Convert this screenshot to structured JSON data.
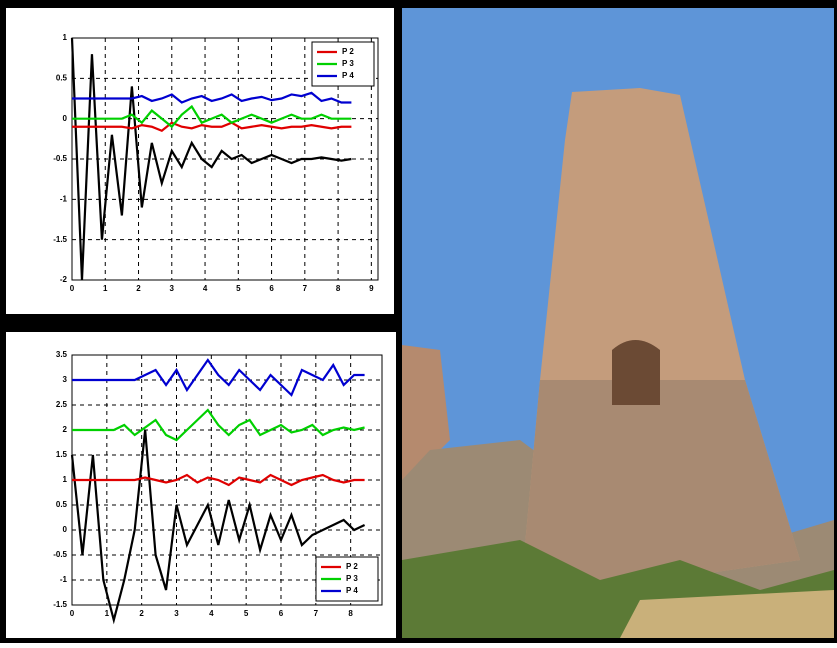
{
  "chart_data": [
    {
      "type": "line",
      "x": [
        0,
        0.3,
        0.6,
        0.9,
        1.2,
        1.5,
        1.8,
        2.1,
        2.4,
        2.7,
        3,
        3.3,
        3.6,
        3.9,
        4.2,
        4.5,
        4.8,
        5.1,
        5.4,
        5.7,
        6,
        6.3,
        6.6,
        6.9,
        7.2,
        7.5,
        7.8,
        8.1,
        8.4
      ],
      "series": [
        {
          "color": "#000000",
          "values": [
            1,
            -2,
            0.8,
            -1.5,
            -0.2,
            -1.2,
            0.4,
            -1.1,
            -0.3,
            -0.8,
            -0.4,
            -0.6,
            -0.3,
            -0.5,
            -0.6,
            -0.4,
            -0.5,
            -0.45,
            -0.55,
            -0.5,
            -0.45,
            -0.5,
            -0.55,
            -0.5,
            -0.5,
            -0.48,
            -0.5,
            -0.52,
            -0.5
          ]
        },
        {
          "name": "P 2",
          "color": "#e00000",
          "values": [
            -0.1,
            -0.1,
            -0.1,
            -0.1,
            -0.1,
            -0.1,
            -0.12,
            -0.08,
            -0.1,
            -0.15,
            -0.05,
            -0.1,
            -0.12,
            -0.08,
            -0.1,
            -0.1,
            -0.05,
            -0.12,
            -0.1,
            -0.08,
            -0.1,
            -0.12,
            -0.1,
            -0.1,
            -0.08,
            -0.1,
            -0.12,
            -0.1,
            -0.1
          ]
        },
        {
          "name": "P 3",
          "color": "#00d000",
          "values": [
            0,
            0,
            0,
            0,
            0,
            0,
            0.05,
            -0.05,
            0.1,
            0,
            -0.1,
            0.05,
            0.15,
            -0.05,
            0,
            0.05,
            -0.05,
            0,
            0.05,
            0,
            -0.05,
            0,
            0.05,
            0,
            0,
            0.05,
            0,
            0,
            0
          ]
        },
        {
          "name": "P 4",
          "color": "#0000d0",
          "values": [
            0.25,
            0.25,
            0.25,
            0.25,
            0.25,
            0.25,
            0.25,
            0.28,
            0.22,
            0.25,
            0.3,
            0.2,
            0.25,
            0.28,
            0.22,
            0.25,
            0.3,
            0.22,
            0.25,
            0.27,
            0.23,
            0.25,
            0.3,
            0.28,
            0.32,
            0.22,
            0.25,
            0.2,
            0.2
          ]
        }
      ],
      "xlim": [
        0,
        9.2
      ],
      "xticks": [
        0,
        1,
        2,
        3,
        4,
        5,
        6,
        7,
        8,
        9
      ],
      "ylim": [
        -2,
        1
      ],
      "yticks": [
        -2,
        -1.5,
        -1,
        -0.5,
        0,
        0.5,
        1
      ],
      "grid": true,
      "legend": "upper right"
    },
    {
      "type": "line",
      "x": [
        0,
        0.3,
        0.6,
        0.9,
        1.2,
        1.5,
        1.8,
        2.1,
        2.4,
        2.7,
        3,
        3.3,
        3.6,
        3.9,
        4.2,
        4.5,
        4.8,
        5.1,
        5.4,
        5.7,
        6,
        6.3,
        6.6,
        6.9,
        7.2,
        7.5,
        7.8,
        8.1,
        8.4
      ],
      "series": [
        {
          "color": "#000000",
          "values": [
            1.5,
            -0.5,
            1.5,
            -1,
            -1.8,
            -1,
            0,
            2,
            -0.5,
            -1.2,
            0.5,
            -0.3,
            0.1,
            0.5,
            -0.3,
            0.6,
            -0.2,
            0.5,
            -0.4,
            0.3,
            -0.2,
            0.3,
            -0.3,
            -0.1,
            0,
            0.1,
            0.2,
            0,
            0.1
          ]
        },
        {
          "name": "P 2",
          "color": "#e00000",
          "values": [
            1,
            1,
            1,
            1,
            1,
            1,
            1,
            1.05,
            1,
            0.95,
            1,
            1.1,
            0.95,
            1.05,
            1,
            0.9,
            1.05,
            1,
            0.95,
            1.1,
            1,
            0.9,
            1,
            1.05,
            1.1,
            1,
            0.95,
            1,
            1
          ]
        },
        {
          "name": "P 3",
          "color": "#00d000",
          "values": [
            2,
            2,
            2,
            2,
            2,
            2.1,
            1.9,
            2.05,
            2.2,
            1.9,
            1.8,
            2,
            2.2,
            2.4,
            2.1,
            1.9,
            2.1,
            2.2,
            1.9,
            2,
            2.1,
            1.95,
            2,
            2.1,
            1.9,
            2,
            2.05,
            2,
            2.05
          ]
        },
        {
          "name": "P 4",
          "color": "#0000d0",
          "values": [
            3,
            3,
            3,
            3,
            3,
            3,
            3,
            3.1,
            3.2,
            2.9,
            3.2,
            2.8,
            3.1,
            3.4,
            3.1,
            2.9,
            3.2,
            3,
            2.8,
            3.1,
            2.9,
            2.7,
            3.2,
            3.1,
            3,
            3.3,
            2.9,
            3.1,
            3.1
          ]
        }
      ],
      "xlim": [
        0,
        8.9
      ],
      "xticks": [
        0,
        1,
        2,
        3,
        4,
        5,
        6,
        7,
        8
      ],
      "ylim": [
        -1.5,
        3.5
      ],
      "yticks": [
        -1.5,
        -1,
        -0.5,
        0,
        0.5,
        1,
        1.5,
        2,
        2.5,
        3,
        3.5
      ],
      "grid": true,
      "legend": "lower right"
    }
  ]
}
